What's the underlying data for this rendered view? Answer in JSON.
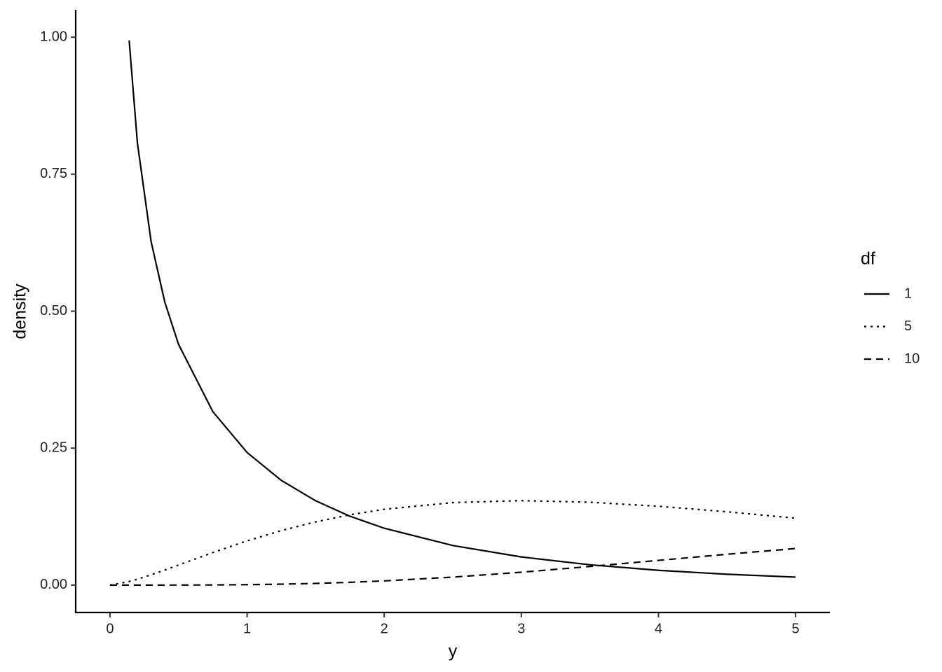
{
  "chart_data": {
    "type": "line",
    "x_label": "y",
    "y_label": "density",
    "x": [
      0,
      0.14,
      0.2,
      0.3,
      0.4,
      0.5,
      0.75,
      1,
      1.25,
      1.5,
      1.75,
      2,
      2.5,
      3,
      3.5,
      4,
      4.5,
      5
    ],
    "series": [
      {
        "name": "1",
        "color": "#000000",
        "dash": "none",
        "values": [
          null,
          0.9941,
          0.8071,
          0.6269,
          0.5164,
          0.4394,
          0.3166,
          0.242,
          0.191,
          0.1539,
          0.1257,
          0.1038,
          0.0723,
          0.0514,
          0.0371,
          0.027,
          0.0198,
          0.0146
        ]
      },
      {
        "name": "5",
        "color": "#000000",
        "dash": "3,6",
        "values": [
          0,
          0.0065,
          0.0108,
          0.0188,
          0.0275,
          0.0366,
          0.0594,
          0.0807,
          0.0995,
          0.1154,
          0.1283,
          0.1384,
          0.1506,
          0.1542,
          0.1513,
          0.1439,
          0.1338,
          0.1221
        ]
      },
      {
        "name": "10",
        "color": "#000000",
        "dash": "10,7",
        "values": [
          0,
          0,
          0,
          0,
          0,
          0.0001,
          0.0003,
          0.0008,
          0.0017,
          0.0031,
          0.0051,
          0.0077,
          0.0146,
          0.0235,
          0.034,
          0.0451,
          0.0563,
          0.0668
        ]
      }
    ],
    "legend_title": "df",
    "legend_position": "right",
    "xlim": [
      -0.25,
      5.25
    ],
    "xticks": [
      0,
      1,
      2,
      3,
      4,
      5
    ],
    "ylim": [
      -0.05,
      1.05
    ],
    "yticks": [
      {
        "value": 0,
        "label": "0.00"
      },
      {
        "value": 0.25,
        "label": "0.25"
      },
      {
        "value": 0.5,
        "label": "0.50"
      },
      {
        "value": 0.75,
        "label": "0.75"
      },
      {
        "value": 1,
        "label": "1.00"
      }
    ],
    "grid": false
  }
}
